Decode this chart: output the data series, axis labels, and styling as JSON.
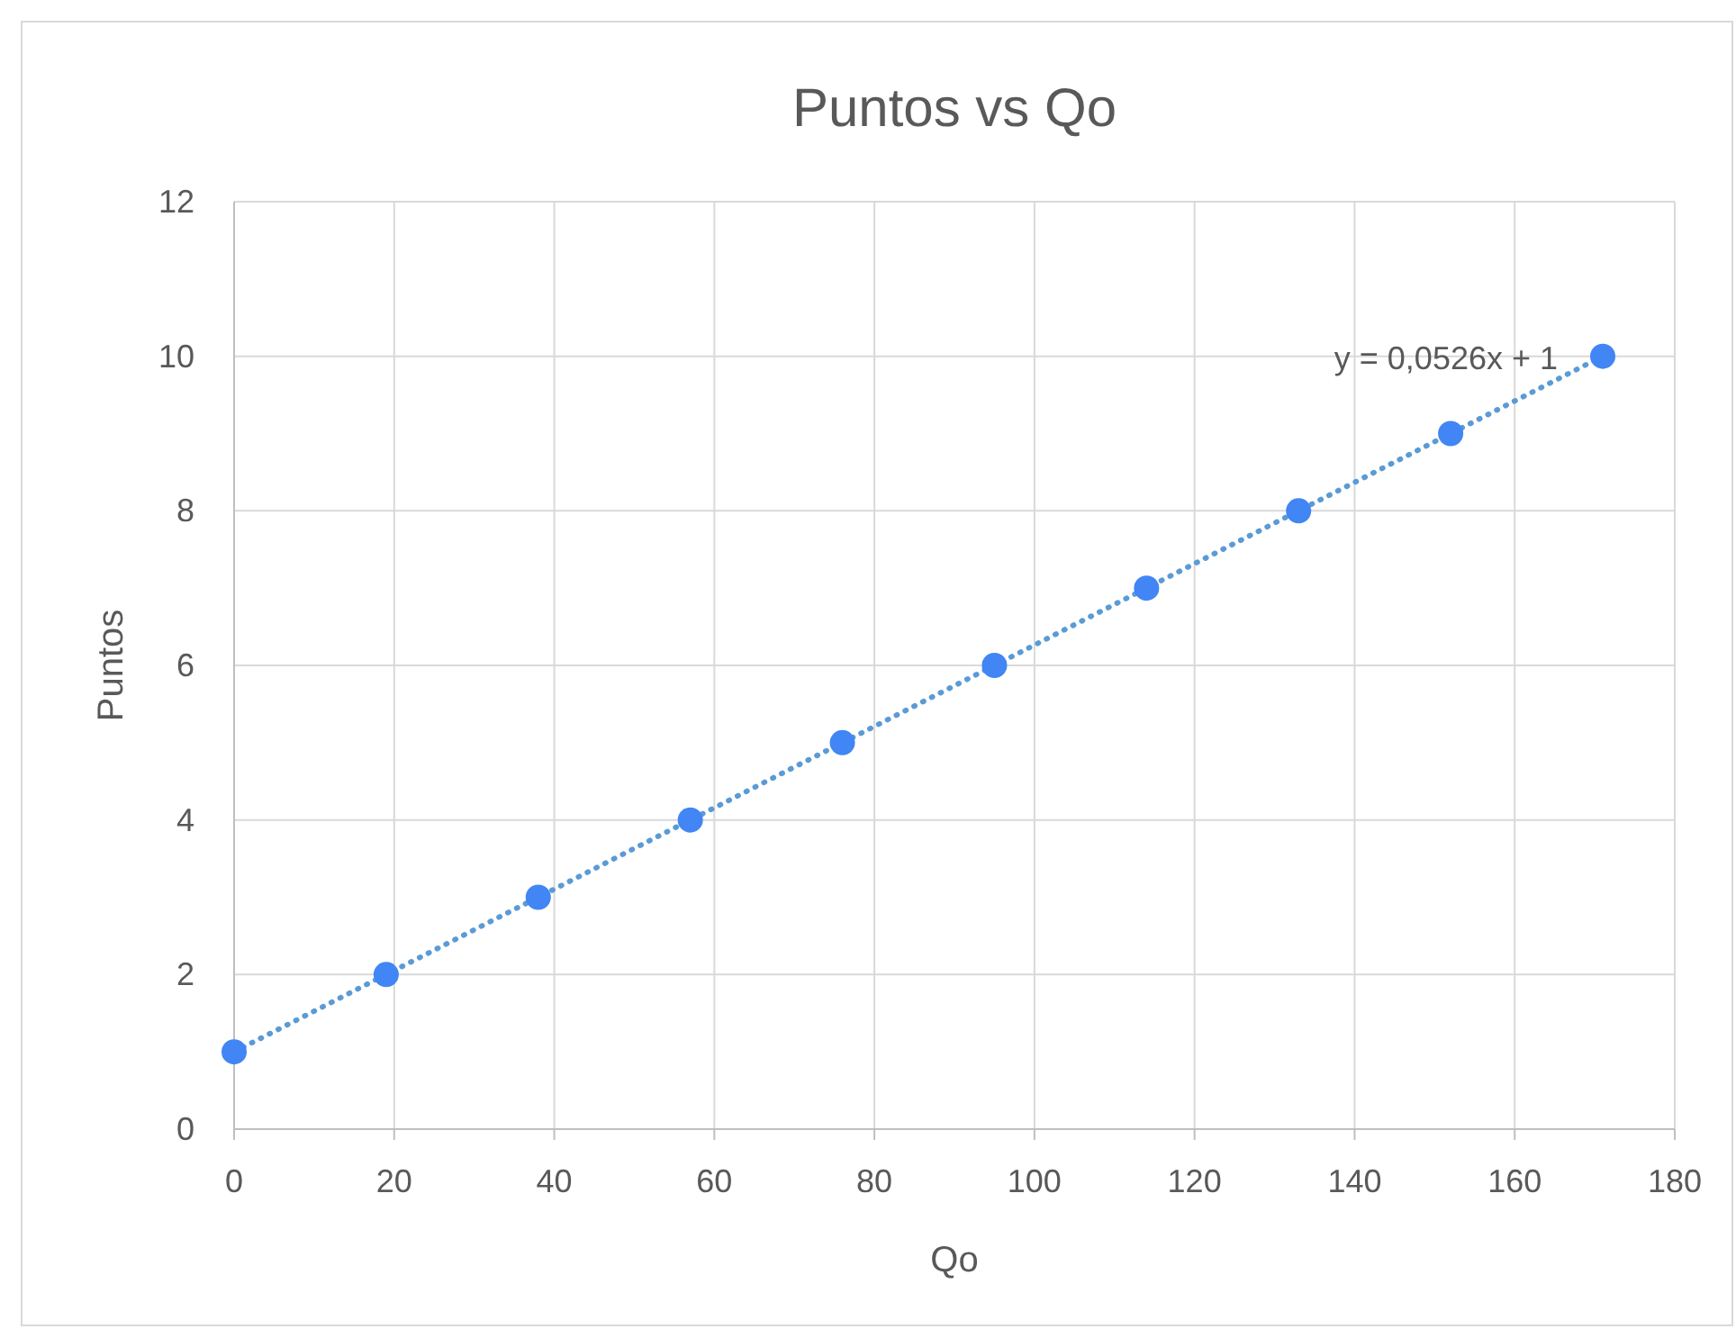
{
  "chart_data": {
    "type": "scatter",
    "title": "Puntos vs Qo",
    "xlabel": "Qo",
    "ylabel": "Puntos",
    "xlim": [
      0,
      180
    ],
    "xticks": [
      0,
      20,
      40,
      60,
      80,
      100,
      120,
      140,
      160,
      180
    ],
    "ylim": [
      0,
      12
    ],
    "yticks": [
      0,
      2,
      4,
      6,
      8,
      10,
      12
    ],
    "grid": true,
    "series": [
      {
        "type": "line",
        "x": [
          0,
          171
        ],
        "values": [
          1,
          10
        ],
        "color": "#5b9bd5",
        "line_style": "dotted",
        "marker": "none"
      },
      {
        "x": [
          0,
          19,
          38,
          57,
          76,
          95,
          114,
          133,
          152,
          171
        ],
        "values": [
          1,
          2,
          3,
          4,
          5,
          6,
          7,
          8,
          9,
          10
        ],
        "color": "#4285f4",
        "marker": "circle"
      }
    ],
    "annotations": [
      {
        "text": "y = 0,0526x + 1",
        "x": 171,
        "y": 10
      }
    ]
  }
}
